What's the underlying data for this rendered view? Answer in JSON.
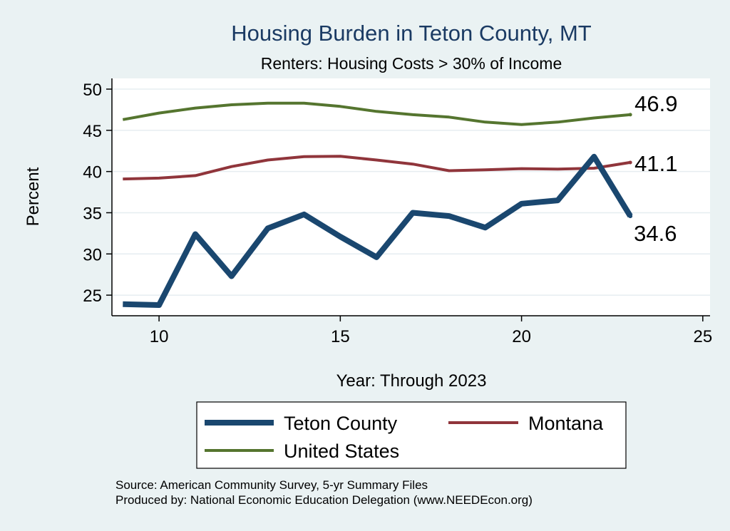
{
  "chart_data": {
    "type": "line",
    "title": "Housing Burden in Teton County, MT",
    "subtitle": "Renters: Housing Costs > 30% of Income",
    "xlabel": "Year: Through 2023",
    "ylabel": "Percent",
    "xlim": [
      8.7,
      25.2
    ],
    "ylim": [
      22.5,
      51.3
    ],
    "xticks": [
      10,
      15,
      20,
      25
    ],
    "yticks": [
      25,
      30,
      35,
      40,
      45,
      50
    ],
    "grid": true,
    "legend_position": "bottom",
    "series": [
      {
        "name": "Teton County",
        "color": "#1a476f",
        "x": [
          9,
          10,
          11,
          12,
          13,
          14,
          15,
          16,
          17,
          18,
          19,
          20,
          21,
          22,
          23
        ],
        "values": [
          23.9,
          23.8,
          32.4,
          27.3,
          33.1,
          34.8,
          32.1,
          29.6,
          35.0,
          34.6,
          33.2,
          36.1,
          36.5,
          41.8,
          34.6
        ],
        "end_label": "34.6"
      },
      {
        "name": "Montana",
        "color": "#90353b",
        "x": [
          9,
          10,
          11,
          12,
          13,
          14,
          15,
          16,
          17,
          18,
          19,
          20,
          21,
          22,
          23
        ],
        "values": [
          39.1,
          39.2,
          39.5,
          40.6,
          41.4,
          41.8,
          41.85,
          41.4,
          40.9,
          40.1,
          40.2,
          40.35,
          40.3,
          40.4,
          41.1
        ],
        "end_label": "41.1"
      },
      {
        "name": "United States",
        "color": "#55752f",
        "x": [
          9,
          10,
          11,
          12,
          13,
          14,
          15,
          16,
          17,
          18,
          19,
          20,
          21,
          22,
          23
        ],
        "values": [
          46.3,
          47.1,
          47.7,
          48.1,
          48.3,
          48.3,
          47.9,
          47.3,
          46.9,
          46.6,
          46.0,
          45.7,
          46.0,
          46.5,
          46.9
        ],
        "end_label": "46.9"
      }
    ],
    "notes": [
      "Source: American Community Survey, 5-yr Summary Files",
      "Produced by: National Economic Education Delegation (www.NEEDEcon.org)"
    ]
  }
}
